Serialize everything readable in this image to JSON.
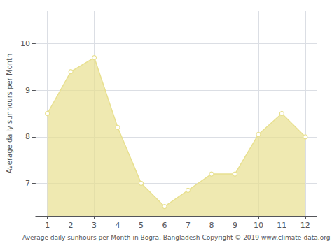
{
  "chart_data": {
    "type": "line",
    "x": [
      1,
      2,
      3,
      4,
      5,
      6,
      7,
      8,
      9,
      10,
      11,
      12
    ],
    "values": [
      8.5,
      9.4,
      9.7,
      8.2,
      7.0,
      6.5,
      6.85,
      7.2,
      7.2,
      8.05,
      8.5,
      8.0
    ],
    "color": "#e8e090",
    "marker": "circle",
    "xlabel": "Average daily sunhours per Month in Bogra, Bangladesh Copyright © 2019 www.climate-data.org",
    "ylabel": "Average daily sunhours per Month",
    "xlim": [
      0.5,
      12.5
    ],
    "ylim": [
      6.3,
      10.7
    ],
    "xticks": [
      1,
      2,
      3,
      4,
      5,
      6,
      7,
      8,
      9,
      10,
      11,
      12
    ],
    "yticks": [
      7,
      8,
      9,
      10
    ],
    "grid": true
  }
}
